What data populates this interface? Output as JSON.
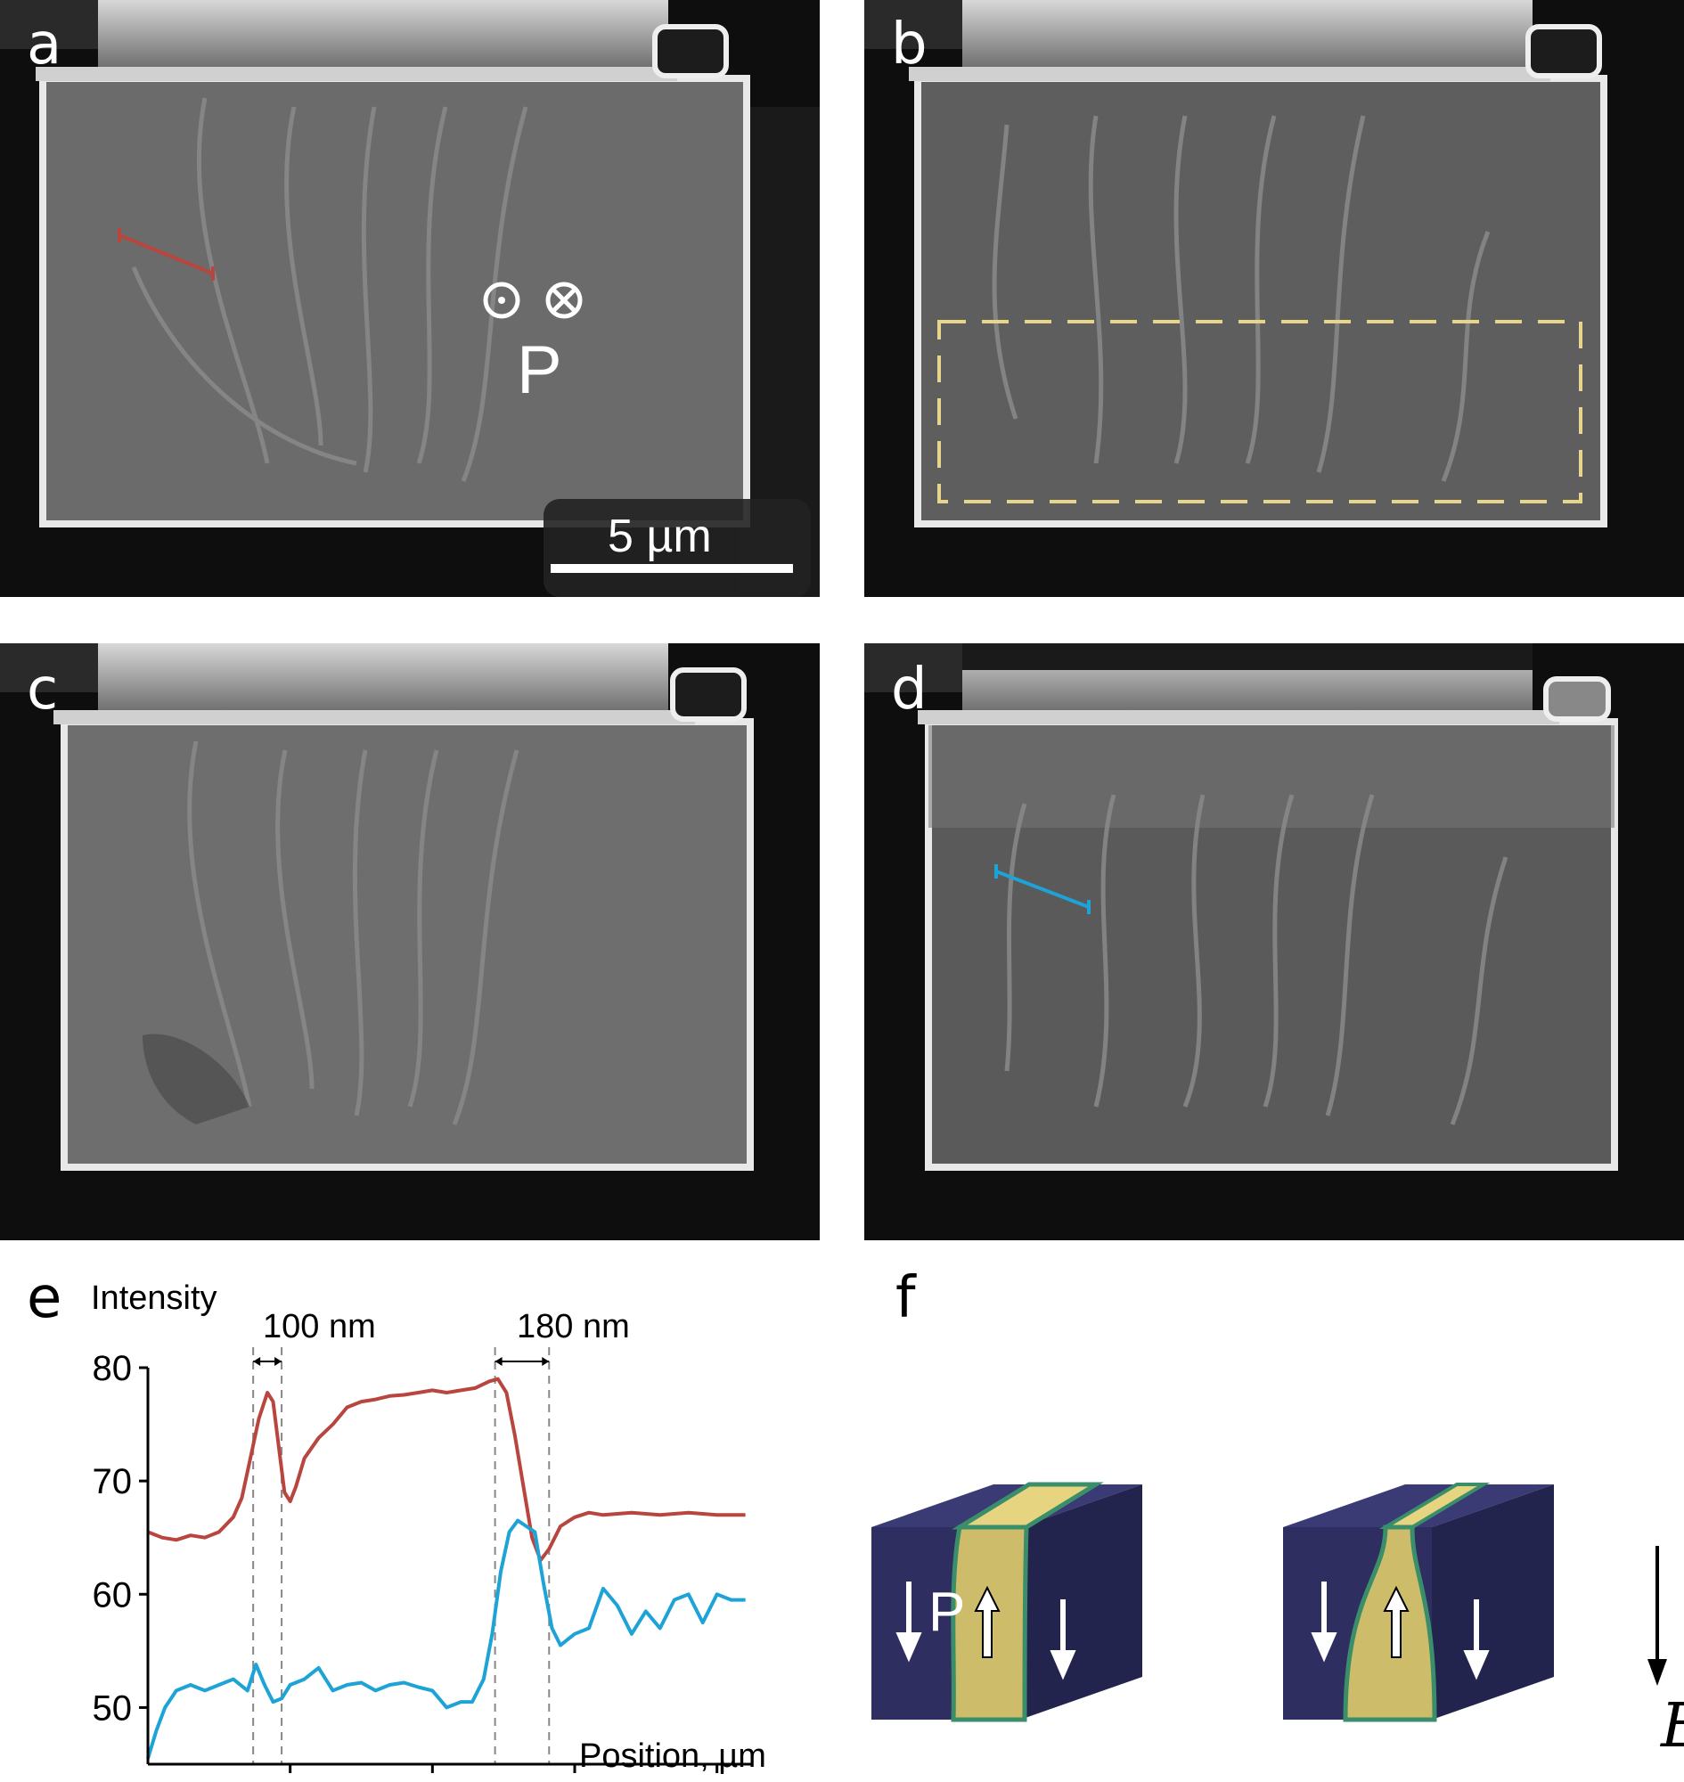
{
  "panels": {
    "a": {
      "label": "a",
      "polarization_symbol": "P",
      "scalebar_label": "5 µm"
    },
    "b": {
      "label": "b"
    },
    "c": {
      "label": "c"
    },
    "d": {
      "label": "d"
    },
    "e": {
      "label": "e"
    },
    "f": {
      "label": "f",
      "polarization_symbol": "P",
      "field_symbol": "E"
    }
  },
  "colors": {
    "red_trace": "#b8463f",
    "blue_trace": "#1ea3d6",
    "dashed_box": "#e6d58a",
    "domain_dark": "#2e2f60",
    "domain_yellow": "#e6d480",
    "domain_wall": "#3a8f6a"
  },
  "chart_data": {
    "type": "line",
    "title": "",
    "ylabel": "Intensity",
    "xlabel": "Position, µm",
    "xlim": [
      0,
      2.12
    ],
    "ylim": [
      45,
      80
    ],
    "xticks": [
      0.5,
      1,
      1.5,
      2
    ],
    "yticks": [
      50,
      60,
      70,
      80
    ],
    "annotations": [
      {
        "text": "100 nm",
        "x_start": 0.37,
        "x_end": 0.47
      },
      {
        "text": "180 nm",
        "x_start": 1.22,
        "x_end": 1.41
      }
    ],
    "series": [
      {
        "color": "#b8463f",
        "x": [
          0.0,
          0.05,
          0.1,
          0.15,
          0.2,
          0.25,
          0.3,
          0.33,
          0.36,
          0.39,
          0.42,
          0.44,
          0.46,
          0.48,
          0.5,
          0.52,
          0.55,
          0.6,
          0.65,
          0.7,
          0.75,
          0.8,
          0.85,
          0.9,
          0.95,
          1.0,
          1.05,
          1.1,
          1.15,
          1.2,
          1.23,
          1.26,
          1.29,
          1.32,
          1.35,
          1.38,
          1.41,
          1.45,
          1.5,
          1.55,
          1.6,
          1.7,
          1.8,
          1.9,
          2.0,
          2.1
        ],
        "y": [
          65.5,
          65,
          64.8,
          65.2,
          65,
          65.5,
          66.8,
          68.5,
          72,
          75.5,
          77.8,
          77,
          73,
          69,
          68.2,
          69.5,
          72,
          73.8,
          75,
          76.5,
          77,
          77.2,
          77.5,
          77.6,
          77.8,
          78,
          77.8,
          78,
          78.2,
          78.8,
          79,
          77.8,
          74,
          69.5,
          65,
          63,
          64,
          66,
          66.8,
          67.2,
          67,
          67.2,
          67,
          67.2,
          67,
          67
        ]
      },
      {
        "color": "#1ea3d6",
        "x": [
          0.0,
          0.03,
          0.06,
          0.1,
          0.15,
          0.2,
          0.25,
          0.3,
          0.35,
          0.38,
          0.41,
          0.44,
          0.47,
          0.5,
          0.55,
          0.6,
          0.65,
          0.7,
          0.75,
          0.8,
          0.85,
          0.9,
          0.95,
          1.0,
          1.05,
          1.1,
          1.14,
          1.18,
          1.21,
          1.24,
          1.27,
          1.3,
          1.33,
          1.36,
          1.39,
          1.42,
          1.45,
          1.5,
          1.55,
          1.6,
          1.65,
          1.7,
          1.75,
          1.8,
          1.85,
          1.9,
          1.95,
          2.0,
          2.05,
          2.1
        ],
        "y": [
          45.5,
          48,
          50,
          51.5,
          52,
          51.5,
          52,
          52.5,
          51.5,
          53.8,
          52,
          50.5,
          50.8,
          52,
          52.5,
          53.5,
          51.5,
          52,
          52.2,
          51.5,
          52,
          52.2,
          51.8,
          51.5,
          50,
          50.5,
          50.5,
          52.5,
          56.5,
          62,
          65.5,
          66.5,
          66,
          65.5,
          61,
          57,
          55.5,
          56.5,
          57,
          60.5,
          59,
          56.5,
          58.5,
          57,
          59.5,
          60,
          57.5,
          60,
          59.5,
          59.5
        ]
      }
    ]
  }
}
